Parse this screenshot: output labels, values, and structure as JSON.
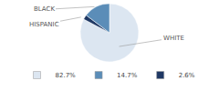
{
  "chart_data": {
    "type": "pie",
    "categories": [
      "WHITE",
      "HISPANIC",
      "BLACK"
    ],
    "values": [
      82.7,
      2.6,
      14.7
    ],
    "colors": [
      "#dce6f1",
      "#1f3864",
      "#5b8db8"
    ],
    "legend": "bottom",
    "legend_entries": [
      {
        "name": "82.7%",
        "color": "#dce6f1"
      },
      {
        "name": "14.7%",
        "color": "#5b8db8"
      },
      {
        "name": "2.6%",
        "color": "#1f3864"
      }
    ]
  }
}
